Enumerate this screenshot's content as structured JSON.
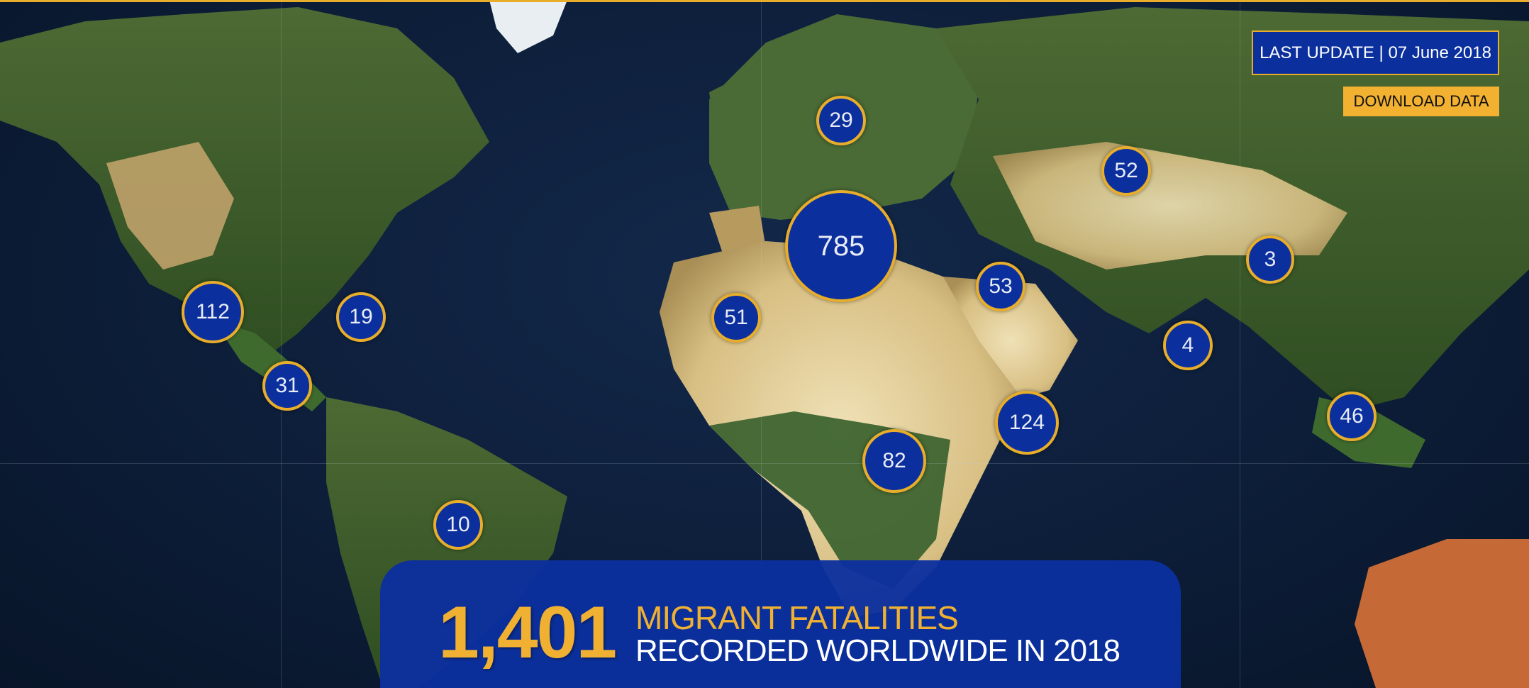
{
  "header": {
    "last_update": "LAST UPDATE | 07 June 2018",
    "download_label": "DOWNLOAD DATA"
  },
  "banner": {
    "count": "1,401",
    "line1": "MIGRANT FATALITIES",
    "line2": "RECORDED WORLDWIDE IN 2018"
  },
  "clusters": [
    {
      "value": "29"
    },
    {
      "value": "785"
    },
    {
      "value": "52"
    },
    {
      "value": "3"
    },
    {
      "value": "53"
    },
    {
      "value": "51"
    },
    {
      "value": "112"
    },
    {
      "value": "19"
    },
    {
      "value": "31"
    },
    {
      "value": "4"
    },
    {
      "value": "124"
    },
    {
      "value": "46"
    },
    {
      "value": "82"
    },
    {
      "value": "10"
    }
  ],
  "colors": {
    "accent": "#e7ad2b",
    "marker_fill": "#0b309e",
    "ocean": "#0d1e39"
  }
}
